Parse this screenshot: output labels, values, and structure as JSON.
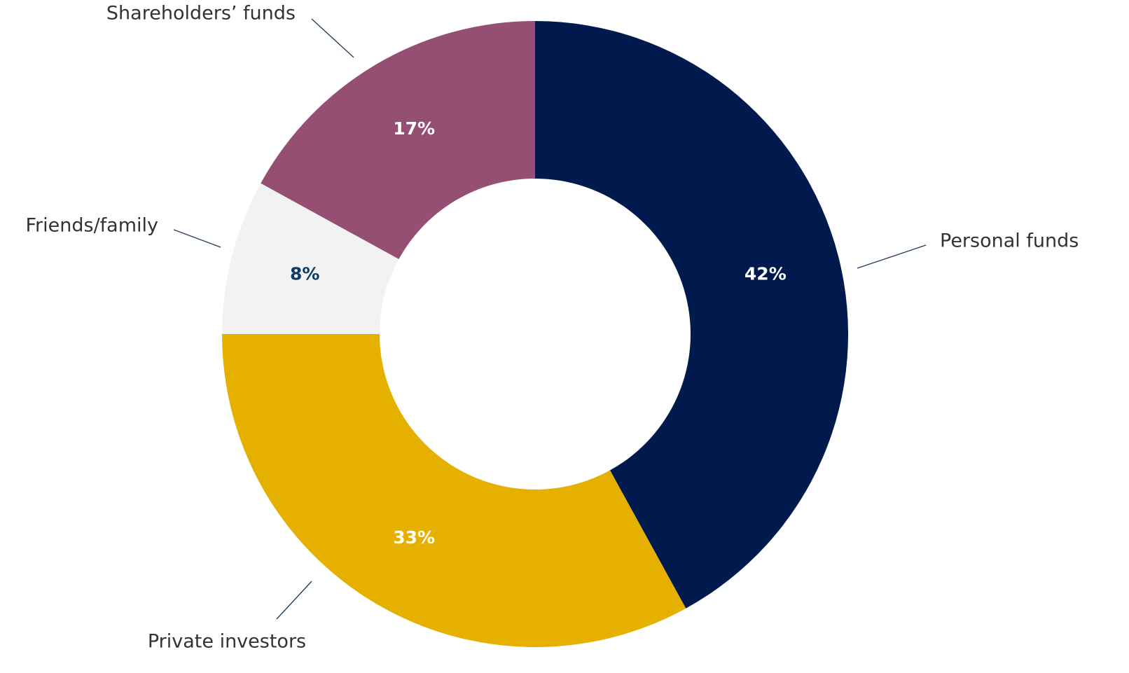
{
  "chart_data": {
    "type": "donut",
    "categories": [
      "Personal funds",
      "Private investors",
      "Friends/family",
      "Shareholders’ funds"
    ],
    "values": [
      42,
      33,
      8,
      17
    ],
    "value_labels": [
      "42%",
      "33%",
      "8%",
      "17%"
    ],
    "colors": [
      "#001a4d",
      "#e6b000",
      "#f2f2f2",
      "#944f72"
    ],
    "label_colors": [
      "#ffffff",
      "#ffffff",
      "#0b3a63",
      "#ffffff"
    ]
  }
}
